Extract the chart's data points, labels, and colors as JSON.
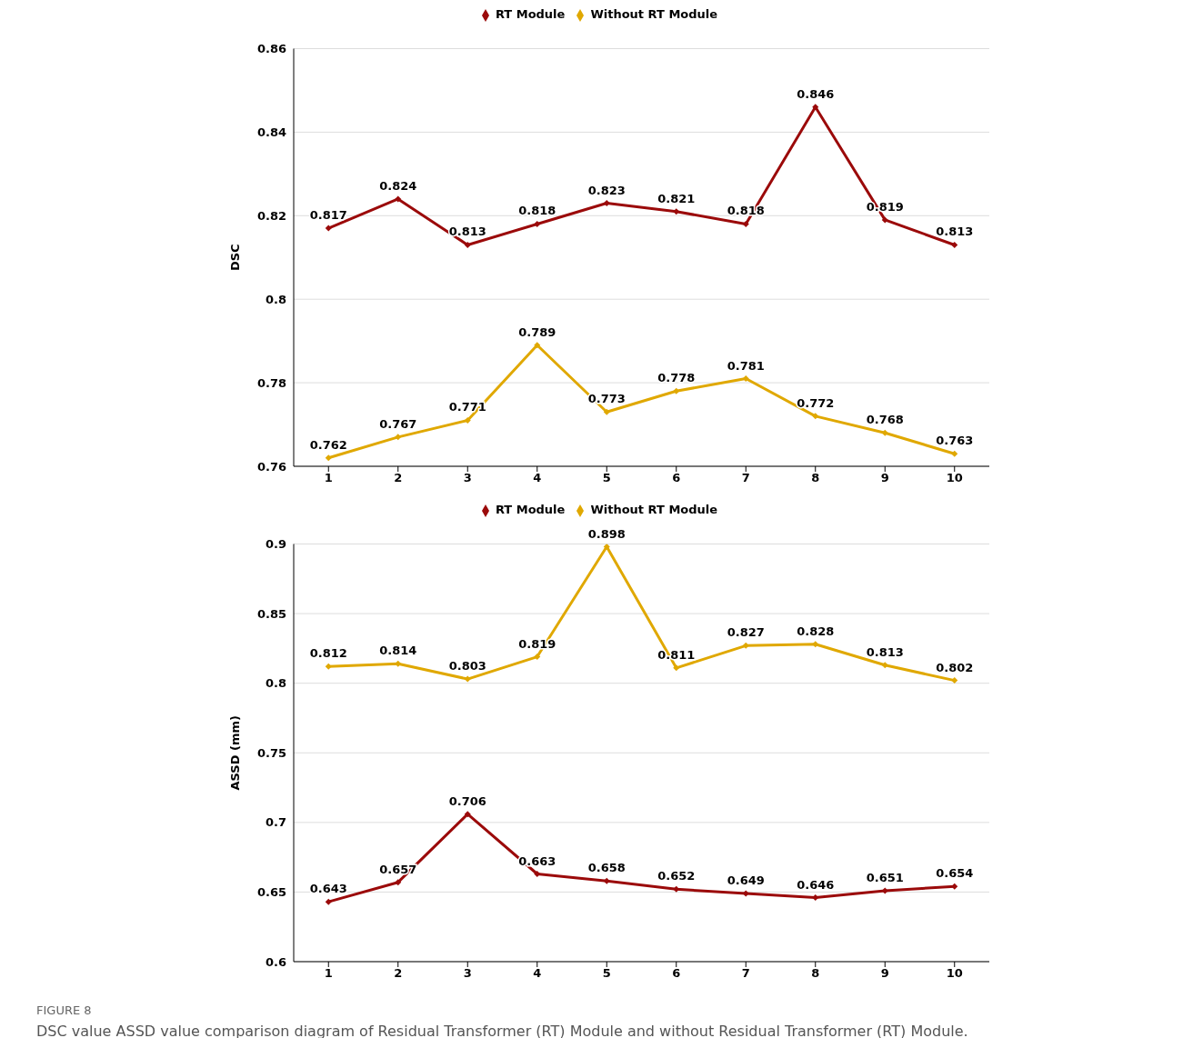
{
  "chart_data": [
    {
      "type": "line",
      "ylabel": "DSC",
      "categories": [
        "1",
        "2",
        "3",
        "4",
        "5",
        "6",
        "7",
        "8",
        "9",
        "10"
      ],
      "series": [
        {
          "name": "RT Module",
          "color": "#9b0a0a",
          "values": [
            0.817,
            0.824,
            0.813,
            0.818,
            0.823,
            0.821,
            0.818,
            0.846,
            0.819,
            0.813
          ]
        },
        {
          "name": "Without RT Module",
          "color": "#e0a800",
          "values": [
            0.762,
            0.767,
            0.771,
            0.789,
            0.773,
            0.778,
            0.781,
            0.772,
            0.768,
            0.763
          ]
        }
      ],
      "ylim": [
        0.76,
        0.86
      ],
      "yticks": [
        0.76,
        0.78,
        0.8,
        0.82,
        0.84,
        0.86
      ],
      "grid": "y",
      "legend": "top",
      "marker": "diamond",
      "line_style": "solid",
      "data_labels": true
    },
    {
      "type": "line",
      "ylabel": "ASSD (mm)",
      "categories": [
        "1",
        "2",
        "3",
        "4",
        "5",
        "6",
        "7",
        "8",
        "9",
        "10"
      ],
      "series": [
        {
          "name": "RT Module",
          "color": "#9b0a0a",
          "values": [
            0.643,
            0.657,
            0.706,
            0.663,
            0.658,
            0.652,
            0.649,
            0.646,
            0.651,
            0.654
          ]
        },
        {
          "name": "Without RT Module",
          "color": "#e0a800",
          "values": [
            0.812,
            0.814,
            0.803,
            0.819,
            0.898,
            0.811,
            0.827,
            0.828,
            0.813,
            0.802
          ]
        }
      ],
      "ylim": [
        0.6,
        0.9
      ],
      "yticks": [
        0.6,
        0.65,
        0.7,
        0.75,
        0.8,
        0.85,
        0.9
      ],
      "grid": "y",
      "legend": "top",
      "marker": "diamond",
      "line_style": "solid",
      "data_labels": true,
      "annotations": [
        "FIGURE 8",
        "DSC value ASSD value comparison diagram of Residual Transformer (RT) Module and without Residual Transformer (RT) Module."
      ]
    }
  ]
}
